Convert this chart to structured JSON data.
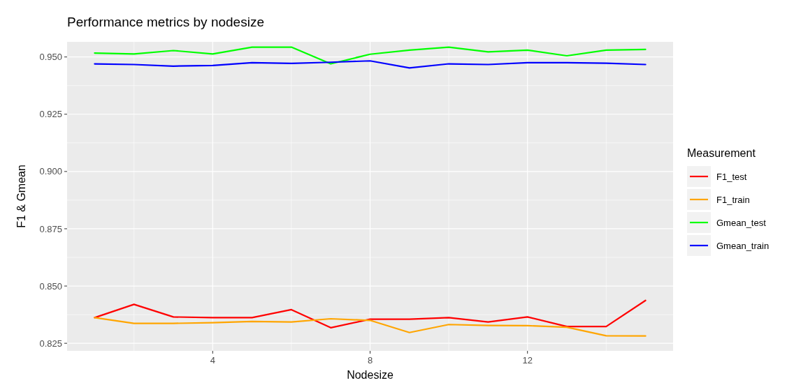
{
  "chart_data": {
    "type": "line",
    "title": "Performance metrics by nodesize",
    "xlabel": "Nodesize",
    "ylabel": "F1 & Gmean",
    "legend_title": "Measurement",
    "legend": "right",
    "grid": true,
    "x": [
      1,
      2,
      3,
      4,
      5,
      6,
      7,
      8,
      9,
      10,
      11,
      12,
      13,
      14,
      15
    ],
    "xlim": [
      0.3,
      15.7
    ],
    "xticks": [
      4,
      8,
      12
    ],
    "ylim": [
      0.8217,
      0.9566
    ],
    "yticks": [
      0.825,
      {
        "value": 0.85,
        "label": "0.850"
      },
      0.875,
      {
        "value": 0.9,
        "label": "0.900"
      },
      0.925,
      {
        "value": 0.95,
        "label": "0.950"
      }
    ],
    "series": [
      {
        "name": "F1_test",
        "color": "#ff0000",
        "values": [
          0.8362,
          0.842,
          0.8365,
          0.8362,
          0.8362,
          0.8397,
          0.8318,
          0.8355,
          0.8355,
          0.8362,
          0.8343,
          0.8365,
          0.8323,
          0.8323,
          0.8437
        ]
      },
      {
        "name": "F1_train",
        "color": "#ffa500",
        "values": [
          0.8362,
          0.8337,
          0.8337,
          0.834,
          0.8345,
          0.8343,
          0.8357,
          0.835,
          0.8297,
          0.8332,
          0.8328,
          0.8327,
          0.832,
          0.8283,
          0.8282
        ]
      },
      {
        "name": "Gmean_test",
        "color": "#00ff00",
        "values": [
          0.9517,
          0.9513,
          0.9528,
          0.9513,
          0.9543,
          0.9543,
          0.947,
          0.9512,
          0.953,
          0.9543,
          0.9522,
          0.953,
          0.9505,
          0.953,
          0.9533
        ]
      },
      {
        "name": "Gmean_train",
        "color": "#0000ff",
        "values": [
          0.947,
          0.9467,
          0.946,
          0.9463,
          0.9475,
          0.9472,
          0.9477,
          0.9483,
          0.9452,
          0.947,
          0.9467,
          0.9475,
          0.9475,
          0.9473,
          0.9467
        ]
      }
    ]
  }
}
